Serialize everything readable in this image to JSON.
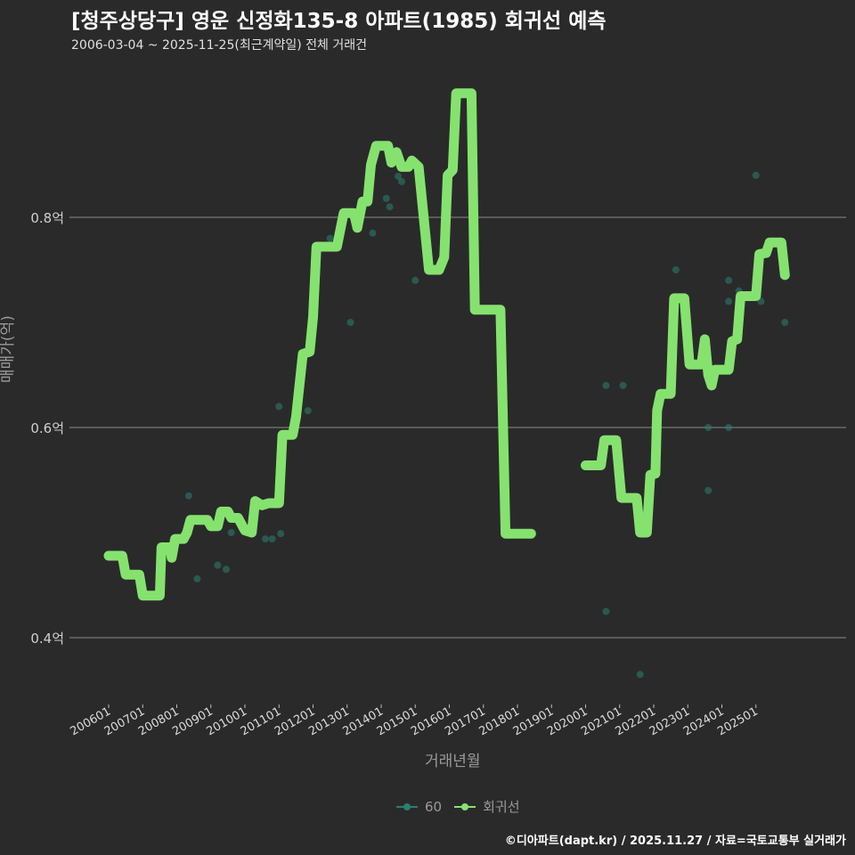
{
  "header": {
    "title": "[청주상당구] 영운 신정화135-8 아파트(1985) 회귀선 예측",
    "subtitle": "2006-03-04 ~ 2025-11-25(최근계약일) 전체 거래건"
  },
  "axes": {
    "ylabel": "매매가(억)",
    "xlabel": "거래년월"
  },
  "legend": [
    {
      "label": "60",
      "color": "#2a7f6f"
    },
    {
      "label": "회귀선",
      "color": "#86e26f"
    }
  ],
  "footer": "©디아파트(dapt.kr) / 2025.11.27 / 자료=국토교통부 실거래가",
  "colors": {
    "background": "#2a2a2b",
    "grid": "#8a8a8a",
    "line": "#86e26f",
    "points": "#2a7f6f"
  },
  "chart_data": {
    "type": "line",
    "title": "[청주상당구] 영운 신정화135-8 아파트(1985) 회귀선 예측",
    "xlabel": "거래년월",
    "ylabel": "매매가(억)",
    "x_ticks": [
      "200601",
      "200701",
      "200801",
      "200901",
      "201001",
      "201101",
      "201201",
      "201301",
      "201401",
      "201501",
      "201601",
      "201701",
      "201801",
      "201901",
      "202001",
      "202101",
      "202201",
      "202301",
      "202401",
      "202501"
    ],
    "y_ticks": [
      {
        "value": 0.4,
        "label": "0.4억"
      },
      {
        "value": 0.6,
        "label": "0.6억"
      },
      {
        "value": 0.8,
        "label": "0.8억"
      }
    ],
    "ylim": [
      0.335,
      0.935
    ],
    "xlim": [
      2005.4,
      2026.2
    ],
    "grid": "horizontal",
    "legend_position": "bottom",
    "series": [
      {
        "name": "회귀선",
        "type": "line",
        "segments": [
          [
            [
              2006.0,
              0.478
            ],
            [
              2006.4,
              0.478
            ],
            [
              2006.5,
              0.46
            ],
            [
              2006.9,
              0.46
            ],
            [
              2007.0,
              0.44
            ],
            [
              2007.5,
              0.44
            ],
            [
              2007.55,
              0.486
            ],
            [
              2007.8,
              0.486
            ],
            [
              2007.85,
              0.476
            ],
            [
              2007.95,
              0.494
            ],
            [
              2008.2,
              0.494
            ],
            [
              2008.3,
              0.5
            ],
            [
              2008.4,
              0.512
            ],
            [
              2008.9,
              0.512
            ],
            [
              2009.0,
              0.506
            ],
            [
              2009.2,
              0.506
            ],
            [
              2009.3,
              0.52
            ],
            [
              2009.5,
              0.52
            ],
            [
              2009.6,
              0.514
            ],
            [
              2009.8,
              0.514
            ],
            [
              2010.0,
              0.502
            ],
            [
              2010.2,
              0.5
            ],
            [
              2010.3,
              0.53
            ],
            [
              2010.5,
              0.526
            ],
            [
              2010.7,
              0.528
            ],
            [
              2011.0,
              0.528
            ],
            [
              2011.1,
              0.593
            ],
            [
              2011.4,
              0.593
            ],
            [
              2011.5,
              0.61
            ],
            [
              2011.7,
              0.67
            ],
            [
              2011.9,
              0.672
            ],
            [
              2012.0,
              0.705
            ],
            [
              2012.1,
              0.772
            ],
            [
              2012.7,
              0.772
            ],
            [
              2012.9,
              0.804
            ],
            [
              2013.2,
              0.804
            ],
            [
              2013.3,
              0.79
            ],
            [
              2013.45,
              0.815
            ],
            [
              2013.6,
              0.815
            ],
            [
              2013.7,
              0.85
            ],
            [
              2013.85,
              0.868
            ],
            [
              2014.2,
              0.868
            ],
            [
              2014.3,
              0.852
            ],
            [
              2014.45,
              0.862
            ],
            [
              2014.6,
              0.848
            ],
            [
              2014.8,
              0.848
            ],
            [
              2014.9,
              0.854
            ],
            [
              2015.1,
              0.848
            ],
            [
              2015.4,
              0.75
            ],
            [
              2015.7,
              0.75
            ],
            [
              2015.85,
              0.762
            ],
            [
              2015.95,
              0.84
            ],
            [
              2016.1,
              0.845
            ],
            [
              2016.2,
              0.918
            ],
            [
              2016.65,
              0.918
            ],
            [
              2016.75,
              0.712
            ],
            [
              2017.5,
              0.712
            ],
            [
              2017.65,
              0.499
            ],
            [
              2018.4,
              0.499
            ]
          ],
          [
            [
              2020.0,
              0.564
            ],
            [
              2020.45,
              0.564
            ],
            [
              2020.55,
              0.588
            ],
            [
              2020.9,
              0.588
            ],
            [
              2021.05,
              0.533
            ],
            [
              2021.5,
              0.533
            ],
            [
              2021.6,
              0.5
            ],
            [
              2021.8,
              0.5
            ],
            [
              2021.9,
              0.555
            ],
            [
              2022.05,
              0.556
            ],
            [
              2022.1,
              0.616
            ],
            [
              2022.2,
              0.632
            ],
            [
              2022.5,
              0.632
            ],
            [
              2022.6,
              0.723
            ],
            [
              2022.9,
              0.723
            ],
            [
              2023.05,
              0.66
            ],
            [
              2023.4,
              0.66
            ],
            [
              2023.5,
              0.684
            ],
            [
              2023.6,
              0.65
            ],
            [
              2023.7,
              0.64
            ],
            [
              2023.8,
              0.655
            ],
            [
              2024.2,
              0.655
            ],
            [
              2024.3,
              0.682
            ],
            [
              2024.45,
              0.684
            ],
            [
              2024.55,
              0.725
            ],
            [
              2025.0,
              0.725
            ],
            [
              2025.1,
              0.765
            ],
            [
              2025.3,
              0.766
            ],
            [
              2025.4,
              0.776
            ],
            [
              2025.75,
              0.776
            ],
            [
              2025.85,
              0.745
            ]
          ]
        ]
      },
      {
        "name": "60",
        "type": "scatter",
        "points": [
          [
            2008.35,
            0.535
          ],
          [
            2008.6,
            0.456
          ],
          [
            2009.2,
            0.469
          ],
          [
            2009.45,
            0.465
          ],
          [
            2009.6,
            0.5
          ],
          [
            2010.6,
            0.494
          ],
          [
            2010.8,
            0.494
          ],
          [
            2011.05,
            0.499
          ],
          [
            2011.0,
            0.62
          ],
          [
            2011.85,
            0.616
          ],
          [
            2012.5,
            0.78
          ],
          [
            2013.1,
            0.7
          ],
          [
            2013.75,
            0.785
          ],
          [
            2014.15,
            0.818
          ],
          [
            2014.25,
            0.81
          ],
          [
            2014.5,
            0.839
          ],
          [
            2014.6,
            0.834
          ],
          [
            2015.0,
            0.74
          ],
          [
            2020.6,
            0.64
          ],
          [
            2021.1,
            0.64
          ],
          [
            2020.6,
            0.425
          ],
          [
            2021.6,
            0.365
          ],
          [
            2022.65,
            0.75
          ],
          [
            2023.6,
            0.6
          ],
          [
            2023.6,
            0.54
          ],
          [
            2024.2,
            0.6
          ],
          [
            2024.2,
            0.74
          ],
          [
            2024.2,
            0.72
          ],
          [
            2024.5,
            0.73
          ],
          [
            2025.0,
            0.84
          ],
          [
            2025.15,
            0.72
          ],
          [
            2025.85,
            0.7
          ]
        ]
      }
    ]
  }
}
